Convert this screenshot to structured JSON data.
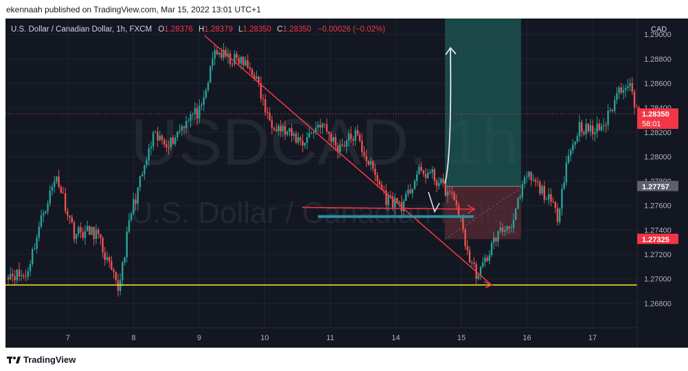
{
  "publisher": "ekennaah published on TradingView.com, Mar 15, 2022 13:01 UTC+1",
  "footer_brand": "TradingView",
  "symbol_header": {
    "name": "U.S. Dollar / Canadian Dollar, 1h, FXCM",
    "ohlc": [
      {
        "key": "O",
        "value": "1.28376"
      },
      {
        "key": "H",
        "value": "1.28379"
      },
      {
        "key": "L",
        "value": "1.28350"
      },
      {
        "key": "C",
        "value": "1.28350"
      }
    ],
    "change": "−0.00026 (−0.02%)"
  },
  "watermark": {
    "big": "USDCAD, 1h",
    "small": "U.S. Dollar / Canadian Dollar"
  },
  "colors": {
    "background": "#131722",
    "up": "#26a69a",
    "down": "#ef5350",
    "trendline": "#f23645",
    "support": "#f7e52f",
    "target_zone": "#1e5c57",
    "stop_zone": "#5a2a33"
  },
  "chart_data": {
    "type": "candlestick",
    "currency": "CAD",
    "y_ticks": [
      "1.29000",
      "1.28800",
      "1.28600",
      "1.28400",
      "1.28200",
      "1.28000",
      "1.27800",
      "1.27600",
      "1.27400",
      "1.27200",
      "1.27000",
      "1.26800"
    ],
    "x_ticks": [
      "7",
      "8",
      "9",
      "10",
      "11",
      "14",
      "15",
      "16",
      "17"
    ],
    "ylim": [
      1.266,
      1.2913
    ],
    "price_labels": [
      {
        "text": "1.28350",
        "sub": "58:01",
        "value": 1.2835,
        "color": "#f23645"
      },
      {
        "text": "1.27757",
        "value": 1.27757,
        "color": "#5d606b"
      },
      {
        "text": "1.27325",
        "value": 1.27325,
        "color": "#f23645"
      }
    ],
    "last_price": 1.2835,
    "support_level": 1.2695,
    "entry_level": 1.27757,
    "stop_level": 1.27325,
    "target_level": 1.2913,
    "anchors": [
      {
        "i": 0,
        "p": 1.2705
      },
      {
        "i": 8,
        "p": 1.2702
      },
      {
        "i": 16,
        "p": 1.2755
      },
      {
        "i": 22,
        "p": 1.2784
      },
      {
        "i": 30,
        "p": 1.2738
      },
      {
        "i": 40,
        "p": 1.2738
      },
      {
        "i": 47,
        "p": 1.2705
      },
      {
        "i": 50,
        "p": 1.2691
      },
      {
        "i": 56,
        "p": 1.2755
      },
      {
        "i": 66,
        "p": 1.2815
      },
      {
        "i": 74,
        "p": 1.2812
      },
      {
        "i": 82,
        "p": 1.2833
      },
      {
        "i": 88,
        "p": 1.2837
      },
      {
        "i": 94,
        "p": 1.2887
      },
      {
        "i": 100,
        "p": 1.288
      },
      {
        "i": 106,
        "p": 1.2878
      },
      {
        "i": 112,
        "p": 1.2868
      },
      {
        "i": 118,
        "p": 1.2832
      },
      {
        "i": 126,
        "p": 1.282
      },
      {
        "i": 134,
        "p": 1.2812
      },
      {
        "i": 142,
        "p": 1.2828
      },
      {
        "i": 150,
        "p": 1.2808
      },
      {
        "i": 158,
        "p": 1.2818
      },
      {
        "i": 166,
        "p": 1.2788
      },
      {
        "i": 172,
        "p": 1.2766
      },
      {
        "i": 180,
        "p": 1.276
      },
      {
        "i": 186,
        "p": 1.2786
      },
      {
        "i": 192,
        "p": 1.2786
      },
      {
        "i": 198,
        "p": 1.2775
      },
      {
        "i": 204,
        "p": 1.2762
      },
      {
        "i": 210,
        "p": 1.2715
      },
      {
        "i": 214,
        "p": 1.2702
      },
      {
        "i": 222,
        "p": 1.2735
      },
      {
        "i": 230,
        "p": 1.2748
      },
      {
        "i": 236,
        "p": 1.2785
      },
      {
        "i": 244,
        "p": 1.277
      },
      {
        "i": 250,
        "p": 1.2752
      },
      {
        "i": 254,
        "p": 1.2795
      },
      {
        "i": 260,
        "p": 1.2825
      },
      {
        "i": 266,
        "p": 1.282
      },
      {
        "i": 272,
        "p": 1.2828
      },
      {
        "i": 278,
        "p": 1.2855
      },
      {
        "i": 282,
        "p": 1.2862
      },
      {
        "i": 287,
        "p": 1.2835
      }
    ]
  }
}
